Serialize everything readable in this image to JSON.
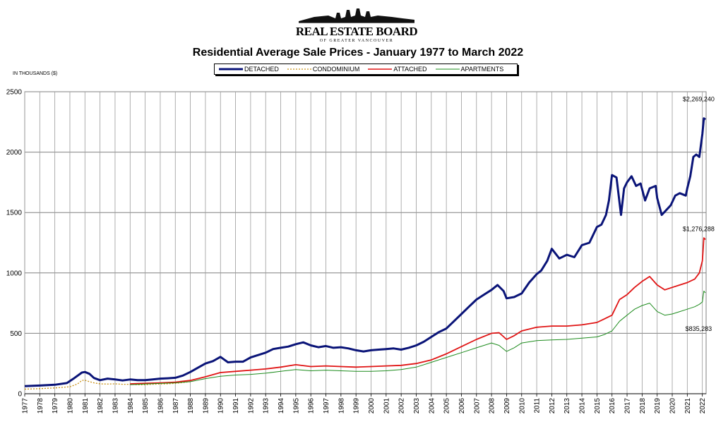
{
  "logo": {
    "line1": "REAL ESTATE BOARD",
    "line2": "OF GREATER VANCOUVER"
  },
  "chart_data": {
    "type": "line",
    "title": "Residential Average Sale Prices  -  January 1977 to March 2022",
    "ylabel": "IN THOUSANDS ($)",
    "ylim": [
      0,
      2500
    ],
    "yticks": [
      0,
      500,
      1000,
      1500,
      2000,
      2500
    ],
    "xlim": [
      1977,
      2022.25
    ],
    "xticks": [
      "1977",
      "1978",
      "1979",
      "1980",
      "1981",
      "1982",
      "1983",
      "1984",
      "1985",
      "1986",
      "1987",
      "1988",
      "1989",
      "1990",
      "1991",
      "1992",
      "1993",
      "1994",
      "1995",
      "1996",
      "1997",
      "1998",
      "1999",
      "2000",
      "2001",
      "2002",
      "2003",
      "2004",
      "2005",
      "2006",
      "2007",
      "2008",
      "2009",
      "2010",
      "2011",
      "2012",
      "2013",
      "2014",
      "2015",
      "2016",
      "2017",
      "2018",
      "2019",
      "2020",
      "2021",
      "2022"
    ],
    "grid": "vertical and horizontal",
    "legend_position": "top-center",
    "series": [
      {
        "name": "DETACHED",
        "color": "#0a1478",
        "style": "solid-thick",
        "x": [
          1977.0,
          1978.0,
          1979.0,
          1979.8,
          1980.3,
          1980.8,
          1981.0,
          1981.3,
          1981.6,
          1982.0,
          1982.5,
          1983.0,
          1983.5,
          1984.0,
          1984.5,
          1985.0,
          1985.5,
          1986.0,
          1986.5,
          1987.0,
          1987.5,
          1988.0,
          1988.5,
          1989.0,
          1989.5,
          1990.0,
          1990.5,
          1991.0,
          1991.5,
          1992.0,
          1992.5,
          1993.0,
          1993.5,
          1994.0,
          1994.5,
          1995.0,
          1995.5,
          1996.0,
          1996.5,
          1997.0,
          1997.5,
          1998.0,
          1998.5,
          1999.0,
          1999.5,
          2000.0,
          2000.5,
          2001.0,
          2001.5,
          2002.0,
          2002.5,
          2003.0,
          2003.5,
          2004.0,
          2004.5,
          2005.0,
          2005.5,
          2006.0,
          2006.5,
          2007.0,
          2007.5,
          2008.0,
          2008.4,
          2008.8,
          2009.0,
          2009.5,
          2010.0,
          2010.5,
          2011.0,
          2011.3,
          2011.7,
          2012.0,
          2012.5,
          2013.0,
          2013.5,
          2014.0,
          2014.5,
          2015.0,
          2015.3,
          2015.6,
          2015.8,
          2016.0,
          2016.3,
          2016.6,
          2016.8,
          2017.0,
          2017.3,
          2017.6,
          2017.9,
          2018.2,
          2018.5,
          2018.9,
          2019.0,
          2019.3,
          2019.6,
          2019.9,
          2020.2,
          2020.5,
          2020.9,
          2021.0,
          2021.2,
          2021.4,
          2021.6,
          2021.8,
          2022.0,
          2022.1,
          2022.2
        ],
        "values": [
          63,
          68,
          74,
          88,
          130,
          175,
          180,
          165,
          130,
          112,
          125,
          118,
          110,
          118,
          112,
          112,
          118,
          125,
          128,
          132,
          150,
          180,
          215,
          250,
          270,
          305,
          260,
          265,
          265,
          300,
          320,
          340,
          370,
          380,
          390,
          410,
          425,
          400,
          385,
          395,
          380,
          385,
          375,
          360,
          350,
          360,
          365,
          370,
          375,
          365,
          380,
          400,
          430,
          470,
          510,
          540,
          600,
          660,
          720,
          780,
          820,
          860,
          900,
          850,
          790,
          800,
          830,
          920,
          990,
          1020,
          1100,
          1200,
          1120,
          1150,
          1130,
          1230,
          1250,
          1380,
          1400,
          1480,
          1600,
          1810,
          1790,
          1480,
          1700,
          1750,
          1800,
          1720,
          1740,
          1600,
          1700,
          1720,
          1620,
          1480,
          1520,
          1560,
          1640,
          1660,
          1640,
          1700,
          1800,
          1960,
          1980,
          1960,
          2150,
          2280,
          2269
        ]
      },
      {
        "name": "CONDOMINIUM",
        "color": "#c89014",
        "style": "dotted",
        "x": [
          1977.0,
          1978.0,
          1979.0,
          1980.0,
          1980.5,
          1980.8,
          1981.0,
          1981.3,
          1981.6,
          1982.0,
          1982.5,
          1983.0,
          1983.5,
          1984.0,
          1984.5,
          1985.0,
          1985.5,
          1986.0,
          1986.5,
          1987.0,
          1987.5,
          1988.0
        ],
        "values": [
          38,
          42,
          48,
          58,
          80,
          110,
          112,
          100,
          90,
          82,
          80,
          82,
          78,
          78,
          74,
          74,
          78,
          80,
          82,
          86,
          92,
          100
        ]
      },
      {
        "name": "ATTACHED",
        "color": "#e01414",
        "style": "solid",
        "x": [
          1984.0,
          1985.0,
          1986.0,
          1987.0,
          1988.0,
          1989.0,
          1990.0,
          1991.0,
          1992.0,
          1993.0,
          1994.0,
          1995.0,
          1996.0,
          1997.0,
          1998.0,
          1999.0,
          2000.0,
          2001.0,
          2002.0,
          2003.0,
          2004.0,
          2005.0,
          2006.0,
          2007.0,
          2008.0,
          2008.5,
          2009.0,
          2009.5,
          2010.0,
          2011.0,
          2012.0,
          2013.0,
          2014.0,
          2015.0,
          2015.5,
          2016.0,
          2016.5,
          2017.0,
          2017.5,
          2018.0,
          2018.5,
          2019.0,
          2019.5,
          2020.0,
          2020.5,
          2021.0,
          2021.5,
          2021.8,
          2022.0,
          2022.1,
          2022.2
        ],
        "values": [
          82,
          86,
          90,
          96,
          110,
          140,
          175,
          185,
          195,
          205,
          220,
          240,
          225,
          230,
          225,
          220,
          225,
          230,
          235,
          250,
          280,
          330,
          390,
          450,
          500,
          505,
          450,
          480,
          520,
          550,
          560,
          560,
          570,
          590,
          620,
          650,
          780,
          820,
          880,
          930,
          970,
          900,
          860,
          880,
          900,
          920,
          950,
          1000,
          1100,
          1290,
          1276
        ]
      },
      {
        "name": "APARTMENTS",
        "color": "#1e8c1e",
        "style": "solid-thin",
        "x": [
          1984.0,
          1985.0,
          1986.0,
          1987.0,
          1988.0,
          1989.0,
          1990.0,
          1991.0,
          1992.0,
          1993.0,
          1994.0,
          1995.0,
          1996.0,
          1997.0,
          1998.0,
          1999.0,
          2000.0,
          2001.0,
          2002.0,
          2003.0,
          2004.0,
          2005.0,
          2006.0,
          2007.0,
          2008.0,
          2008.5,
          2009.0,
          2009.5,
          2010.0,
          2011.0,
          2012.0,
          2013.0,
          2014.0,
          2015.0,
          2015.5,
          2016.0,
          2016.5,
          2017.0,
          2017.5,
          2018.0,
          2018.5,
          2019.0,
          2019.5,
          2020.0,
          2020.5,
          2021.0,
          2021.5,
          2021.8,
          2022.0,
          2022.1,
          2022.2
        ],
        "values": [
          75,
          80,
          85,
          90,
          100,
          125,
          145,
          155,
          160,
          170,
          185,
          200,
          190,
          195,
          190,
          185,
          185,
          190,
          200,
          220,
          260,
          300,
          340,
          380,
          420,
          400,
          350,
          380,
          420,
          440,
          445,
          450,
          460,
          470,
          490,
          520,
          600,
          650,
          700,
          730,
          750,
          680,
          650,
          660,
          680,
          700,
          720,
          740,
          760,
          850,
          835
        ]
      }
    ],
    "annotations": [
      {
        "text": "$2,269,240",
        "x": 2021.75,
        "y": 2420
      },
      {
        "text": "$1,276,288",
        "x": 2021.75,
        "y": 1345
      },
      {
        "text": "$835,283",
        "x": 2021.75,
        "y": 520
      }
    ]
  }
}
